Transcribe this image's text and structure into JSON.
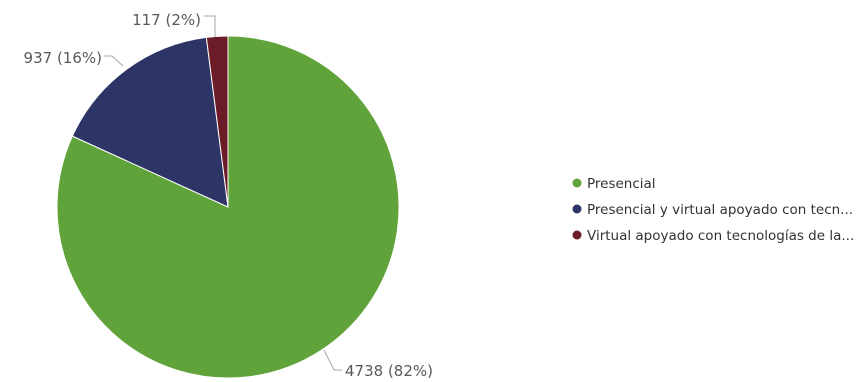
{
  "chart_data": {
    "type": "pie",
    "title": "",
    "legend_position": "right",
    "slices": [
      {
        "name": "Presencial",
        "legend_label": "Presencial",
        "value": 4738,
        "percent_label": "4738 (82%)",
        "color": "#5fa33a"
      },
      {
        "name": "Presencial y virtual apoyado con tecn...",
        "legend_label": "Presencial y virtual apoyado con tecn...",
        "value": 937,
        "percent_label": "937 (16%)",
        "color": "#2c3566"
      },
      {
        "name": "Virtual apoyado con tecnologías de la...",
        "legend_label": "Virtual apoyado con tecnologías de la...",
        "value": 117,
        "percent_label": "117 (2%)",
        "color": "#6b1c26"
      }
    ]
  }
}
